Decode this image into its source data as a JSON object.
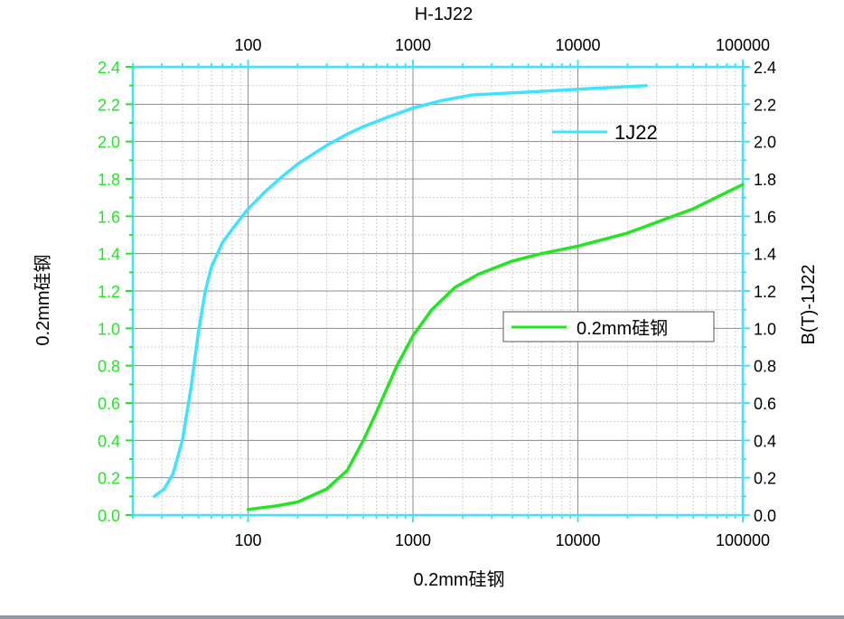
{
  "chart_data": {
    "type": "line",
    "title": "H-1J22",
    "xlabel_bottom": "0.2mm硅钢",
    "ylabel_left": "0.2mm硅钢",
    "ylabel_right": "B(T)-1J22",
    "x_scale": "log",
    "xlim": [
      20,
      100000
    ],
    "ylim": [
      0,
      2.4
    ],
    "x_ticks": [
      100,
      1000,
      10000,
      100000
    ],
    "x_tick_labels": [
      "100",
      "1000",
      "10000",
      "100000"
    ],
    "y_ticks": [
      0.0,
      0.2,
      0.4,
      0.6,
      0.8,
      1.0,
      1.2,
      1.4,
      1.6,
      1.8,
      2.0,
      2.2,
      2.4
    ],
    "y_tick_labels": [
      "0.0",
      "0.2",
      "0.4",
      "0.6",
      "0.8",
      "1.0",
      "1.2",
      "1.4",
      "1.6",
      "1.8",
      "2.0",
      "2.2",
      "2.4"
    ],
    "grid": true,
    "legend": [
      {
        "name": "1J22",
        "placement": "top-right"
      },
      {
        "name": "0.2mm硅钢",
        "placement": "middle-right",
        "boxed": true
      }
    ],
    "series": [
      {
        "name": "1J22",
        "color": "#3ee3ff",
        "x": [
          27,
          31,
          35,
          40,
          45,
          50,
          55,
          60,
          70,
          80,
          100,
          130,
          160,
          200,
          300,
          400,
          500,
          700,
          1000,
          1500,
          2300,
          5000,
          10000,
          26000
        ],
        "y": [
          0.1,
          0.14,
          0.22,
          0.4,
          0.68,
          0.98,
          1.2,
          1.33,
          1.46,
          1.53,
          1.64,
          1.74,
          1.81,
          1.88,
          1.98,
          2.04,
          2.08,
          2.13,
          2.18,
          2.22,
          2.25,
          2.265,
          2.28,
          2.3
        ]
      },
      {
        "name": "0.2mm硅钢",
        "color": "#22e622",
        "x": [
          100,
          150,
          200,
          300,
          400,
          500,
          600,
          800,
          1000,
          1300,
          1800,
          2500,
          4000,
          6000,
          10000,
          20000,
          50000,
          100000
        ],
        "y": [
          0.03,
          0.05,
          0.07,
          0.14,
          0.24,
          0.4,
          0.55,
          0.8,
          0.96,
          1.1,
          1.22,
          1.29,
          1.36,
          1.4,
          1.44,
          1.51,
          1.64,
          1.77
        ]
      }
    ]
  },
  "colors": {
    "axis_frame": "#3ee3ff",
    "left_ticks": "#22e622",
    "grid_major": "#8c8c8c",
    "grid_minor": "#d0d0d0",
    "text": "#000000"
  }
}
